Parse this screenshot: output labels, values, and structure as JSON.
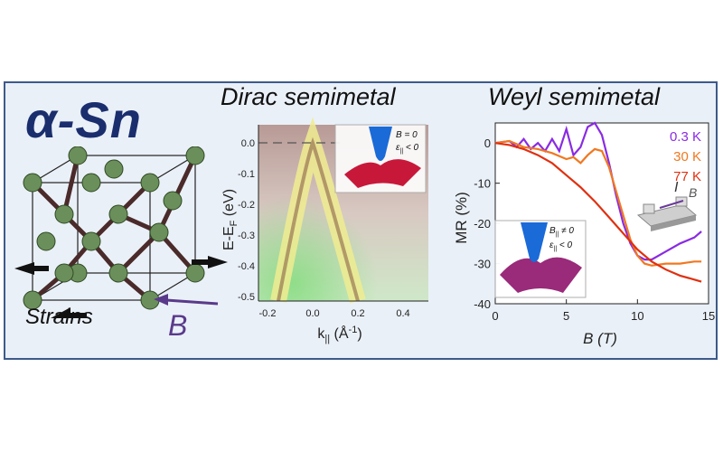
{
  "headline": "α-Sn",
  "strains_label": "Strains",
  "b_arrow_label": "B",
  "dirac_panel": {
    "title": "Dirac semimetal",
    "ylabel": "E-E",
    "ylabel_sub": "F",
    "ylabel_unit": " (eV)",
    "xlabel": "k",
    "xlabel_sub": "||",
    "xlabel_unit": " (Å",
    "xlabel_sup": "-1",
    "xlabel_close": ")",
    "yticks": [
      "0.0",
      "-0.1",
      "-0.2",
      "-0.3",
      "-0.4",
      "-0.5"
    ],
    "xticks": [
      "-0.2",
      "0.0",
      "0.2",
      "0.4"
    ],
    "inset_line1": "B = 0",
    "inset_line2": "ε",
    "inset_line2_sub": "||",
    "inset_line2_rest": " < 0"
  },
  "weyl_panel": {
    "title": "Weyl semimetal",
    "ylabel": "MR (%)",
    "xlabel": "B (T)",
    "inset_line1": "B",
    "inset_line1_sub": "||",
    "inset_line1_rest": " ≠ 0",
    "inset_line2": "ε",
    "inset_line2_sub": "||",
    "inset_line2_rest": " < 0",
    "device_label_i": "I",
    "device_label_b": "B"
  },
  "chart_data": {
    "type": "line",
    "xlabel": "B (T)",
    "ylabel": "MR (%)",
    "xlim": [
      0,
      15
    ],
    "ylim": [
      -40,
      5
    ],
    "xticks": [
      0,
      5,
      10,
      15
    ],
    "yticks": [
      0,
      -10,
      -20,
      -30,
      -40
    ],
    "legend_position": "top-right",
    "series": [
      {
        "name": "0.3 K",
        "color": "#8a2be2",
        "x": [
          0,
          1,
          1.5,
          2,
          2.5,
          3,
          3.5,
          4,
          4.5,
          5,
          5.5,
          6,
          6.5,
          7,
          7.5,
          8,
          8.5,
          9,
          9.5,
          10,
          10.5,
          11,
          12,
          13,
          14,
          14.5
        ],
        "y": [
          0,
          0.5,
          -1,
          1,
          -1.5,
          0,
          -2,
          1,
          -2,
          3.5,
          -3,
          -1,
          4,
          5,
          2,
          -5,
          -13,
          -20,
          -25,
          -28,
          -29,
          -29,
          -27,
          -25,
          -23.5,
          -22
        ]
      },
      {
        "name": "30 K",
        "color": "#f07820",
        "x": [
          0,
          1,
          2,
          3,
          4,
          5,
          5.5,
          6,
          6.5,
          7,
          7.5,
          8,
          8.5,
          9,
          9.5,
          10,
          10.5,
          11,
          12,
          13,
          14,
          14.5
        ],
        "y": [
          0,
          0.5,
          -1,
          -1.5,
          -2.5,
          -4,
          -3.5,
          -5,
          -3,
          -1.5,
          -2,
          -6,
          -12,
          -18,
          -24,
          -28,
          -30,
          -30.5,
          -30,
          -30,
          -29.5,
          -29.5
        ]
      },
      {
        "name": "77 K",
        "color": "#e03010",
        "x": [
          0,
          1,
          2,
          3,
          4,
          5,
          6,
          7,
          8,
          9,
          10,
          11,
          12,
          13,
          14,
          14.5
        ],
        "y": [
          0,
          -0.5,
          -1.5,
          -3,
          -5,
          -8,
          -11,
          -14.5,
          -18.5,
          -22.5,
          -26.5,
          -29.5,
          -31.5,
          -33,
          -34,
          -34.5
        ]
      }
    ]
  },
  "colors": {
    "panel_border": "#3d5a8a",
    "panel_bg": "#eaf0f8",
    "headline": "#1a2e6e",
    "atom": "#6b8f5a",
    "bond": "#5a3a3a"
  }
}
